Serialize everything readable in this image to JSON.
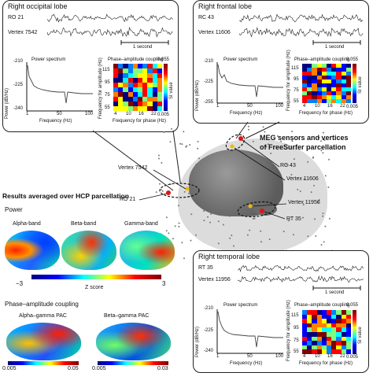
{
  "occipital": {
    "title": "Right occipital lobe",
    "sensor_label": "RO 21",
    "vertex_label": "Vertex 7542",
    "scalebar_label": "1 second",
    "spectrum": {
      "title": "Power spectrum",
      "ylabel": "Power (dB/Hz)",
      "xlabel": "Frequency (Hz)",
      "yticks": [
        "-210",
        "-225",
        "-240"
      ],
      "xticks": [
        "1",
        "50",
        "100"
      ]
    },
    "pac": {
      "title": "Phase–amplitude coupling",
      "ylabel": "Frequency for amplitude (Hz)",
      "xlabel": "Frequency for phase (Hz)",
      "yticks": [
        "115",
        "95",
        "75",
        "55"
      ],
      "xticks": [
        "4",
        "10",
        "16",
        "22"
      ],
      "cbar_label": "SI value",
      "cbar_max": "0.055",
      "cbar_min": "0.005"
    }
  },
  "frontal": {
    "title": "Right frontal lobe",
    "sensor_label": "RC 43",
    "vertex_label": "Vertex 11606",
    "scalebar_label": "1 second",
    "spectrum": {
      "title": "Power spectrum",
      "ylabel": "Power (dB/Hz)",
      "xlabel": "Frequency (Hz)",
      "yticks": [
        "-210",
        "-225",
        "-255"
      ],
      "xticks": [
        "1",
        "50",
        "100"
      ]
    },
    "pac": {
      "title": "Phase–amplitude coupling",
      "ylabel": "Frequency for amplitude (Hz)",
      "xlabel": "Frequency for phase (Hz)",
      "yticks": [
        "115",
        "95",
        "75",
        "55"
      ],
      "xticks": [
        "4",
        "10",
        "16",
        "22"
      ],
      "cbar_label": "SI value",
      "cbar_max": "0.055",
      "cbar_min": "0.005"
    }
  },
  "temporal": {
    "title": "Right temporal lobe",
    "sensor_label": "RT 35",
    "vertex_label": "Vertex 11956",
    "scalebar_label": "1 second",
    "spectrum": {
      "title": "Power spectrum",
      "ylabel": "Power (dB/Hz)",
      "xlabel": "Frequency (Hz)",
      "yticks": [
        "-210",
        "-225",
        "-240"
      ],
      "xticks": [
        "1",
        "50",
        "100"
      ]
    },
    "pac": {
      "title": "Phase–amplitude coupling",
      "ylabel": "Frequency for amplitude (Hz)",
      "xlabel": "Frequency for phase (Hz)",
      "yticks": [
        "115",
        "95",
        "75",
        "55"
      ],
      "xticks": [
        "4",
        "10",
        "16",
        "22"
      ],
      "cbar_label": "SI value",
      "cbar_max": "0.055",
      "cbar_min": "0.005"
    }
  },
  "center": {
    "title_line1": "MEG sensors and vertices",
    "title_line2": "of FreeSurfer parcellation",
    "labels": [
      "Vertex 7542",
      "RO 21",
      "RC 43",
      "Vertex 11606",
      "Vertex 11956",
      "RT 35"
    ]
  },
  "results": {
    "title": "Results averaged over HCP parcellation",
    "power_heading": "Power",
    "bands": [
      "Alpha-band",
      "Beta-band",
      "Gamma-band"
    ],
    "power_cbar": {
      "min": "−3",
      "max": "3",
      "label": "Z score"
    },
    "pac_heading": "Phase–amplitude coupling",
    "pac_maps": [
      "Alpha–gamma PAC",
      "Beta–gamma PAC"
    ],
    "pac_cbar_left": {
      "min": "0.005",
      "max": "0.05"
    },
    "pac_cbar_right": {
      "min": "0.005",
      "max": "0.03"
    }
  },
  "colors": {
    "jet": [
      "#00007f",
      "#0000ff",
      "#007fff",
      "#00ffff",
      "#7fff7f",
      "#ffff00",
      "#ff7f00",
      "#ff0000",
      "#7f0000"
    ]
  }
}
